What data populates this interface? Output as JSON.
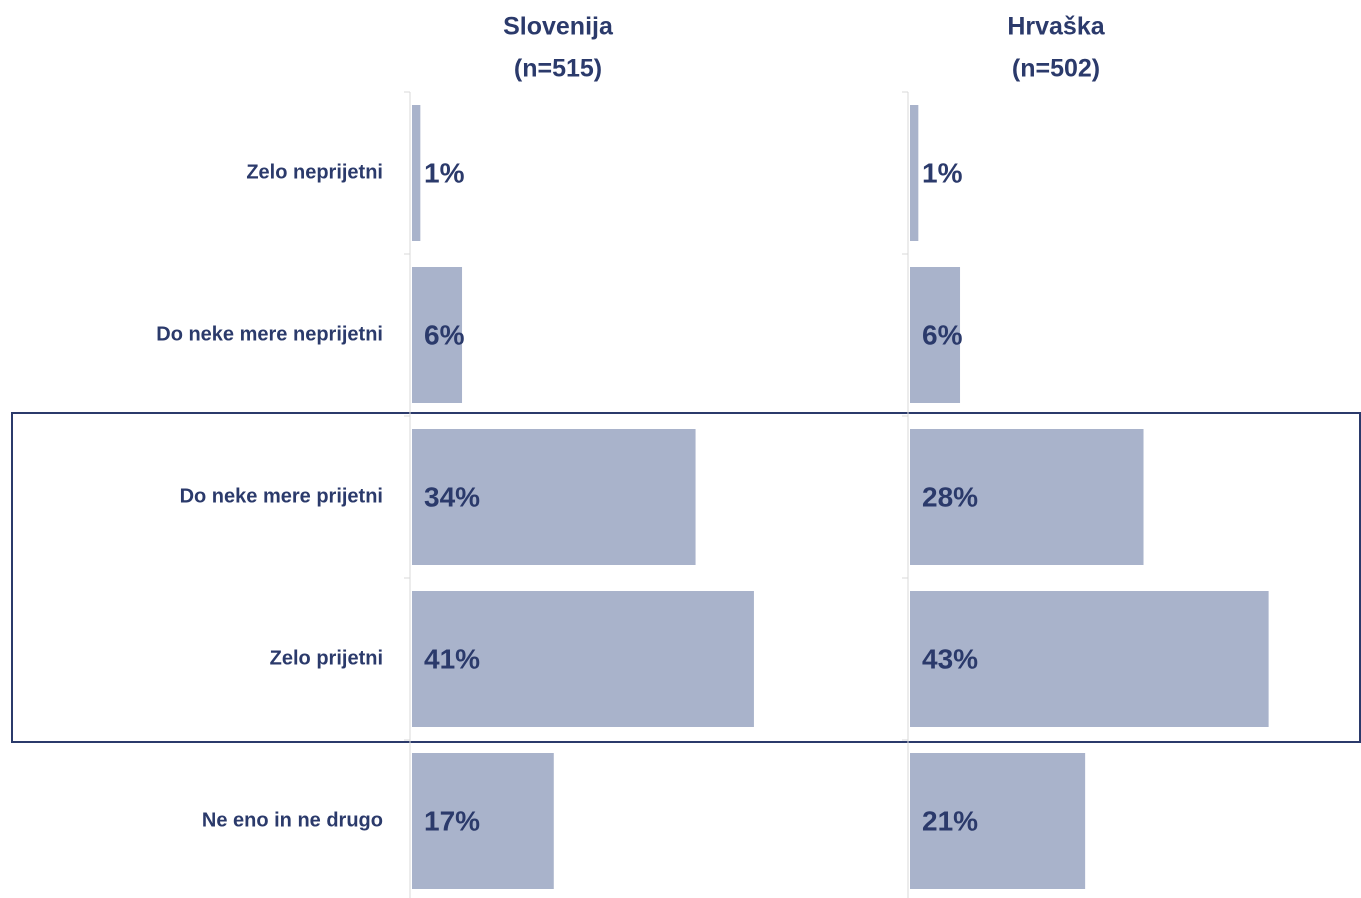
{
  "chart_data": {
    "type": "bar",
    "orientation": "horizontal",
    "categories": [
      "Zelo neprijetni",
      "Do neke mere neprijetni",
      "Do neke mere prijetni",
      "Zelo prijetni",
      "Ne eno in ne drugo"
    ],
    "xlim": [
      0,
      50
    ],
    "series": [
      {
        "name": "Slovenija",
        "note": "(n=515)",
        "color": "#a9b3cb",
        "values": [
          1,
          6,
          34,
          41,
          17
        ],
        "value_labels": [
          "1%",
          "6%",
          "34%",
          "41%",
          "17%"
        ]
      },
      {
        "name": "Hrvaška",
        "note": "(n=502)",
        "color": "#a9b3cb",
        "values": [
          1,
          6,
          28,
          43,
          21
        ],
        "value_labels": [
          "1%",
          "6%",
          "28%",
          "43%",
          "21%"
        ]
      }
    ]
  }
}
